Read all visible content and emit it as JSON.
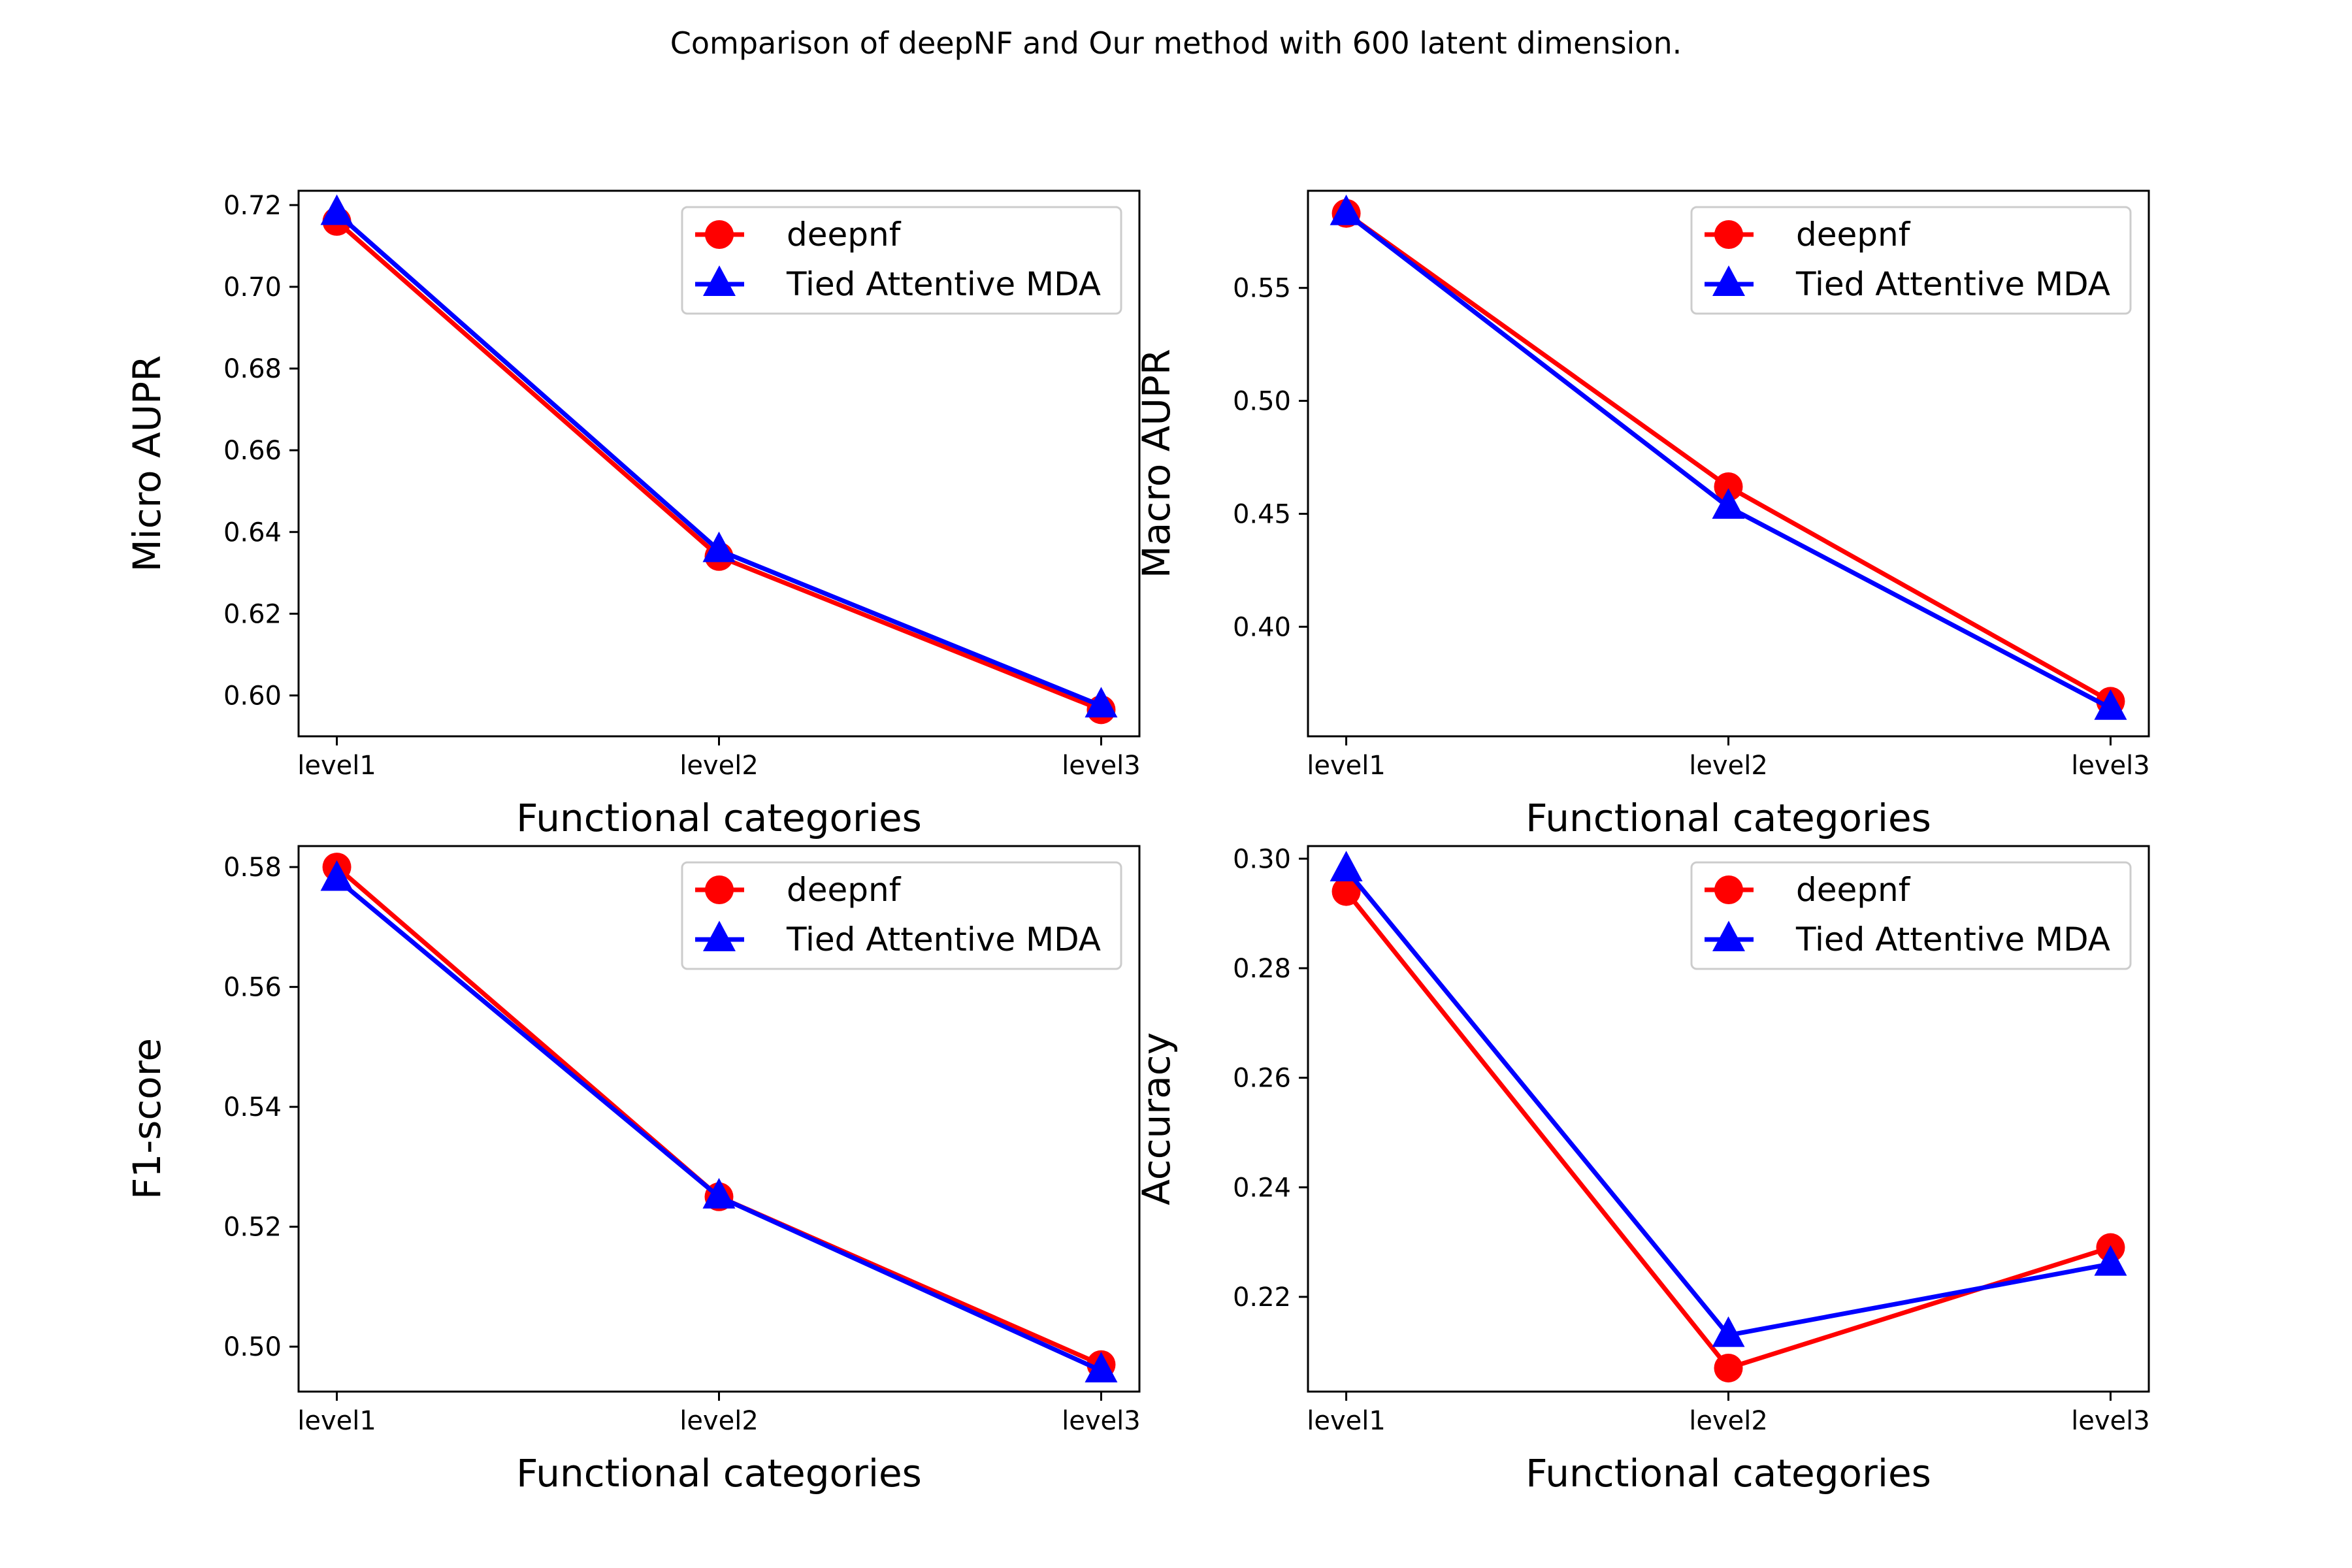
{
  "suptitle": "Comparison of deepNF and Our method with 600 latent dimension.",
  "colors": {
    "series_1": "#ff0000",
    "series_2": "#0000ff",
    "axes": "#000000",
    "legend_border": "#cccccc"
  },
  "chart_data": [
    {
      "type": "line",
      "categories": [
        "level1",
        "level2",
        "level3"
      ],
      "xlabel": "Functional categories",
      "ylabel": "Micro AUPR",
      "ylim": [
        0.59,
        0.7235
      ],
      "yticks": [
        0.6,
        0.62,
        0.64,
        0.66,
        0.68,
        0.7,
        0.72
      ],
      "ytick_labels": [
        "0.60",
        "0.62",
        "0.64",
        "0.66",
        "0.68",
        "0.70",
        "0.72"
      ],
      "legend_position": "top-right",
      "series": [
        {
          "name": "deepnf",
          "marker": "circle",
          "color": "#ff0000",
          "values": [
            0.716,
            0.634,
            0.5965
          ]
        },
        {
          "name": "Tied Attentive MDA",
          "marker": "triangle",
          "color": "#0000ff",
          "values": [
            0.718,
            0.6355,
            0.5975
          ]
        }
      ]
    },
    {
      "type": "line",
      "categories": [
        "level1",
        "level2",
        "level3"
      ],
      "xlabel": "Functional categories",
      "ylabel": "Macro AUPR",
      "ylim": [
        0.3515,
        0.593
      ],
      "yticks": [
        0.4,
        0.45,
        0.5,
        0.55
      ],
      "ytick_labels": [
        "0.40",
        "0.45",
        "0.50",
        "0.55"
      ],
      "legend_position": "top-right",
      "series": [
        {
          "name": "deepnf",
          "marker": "circle",
          "color": "#ff0000",
          "values": [
            0.583,
            0.462,
            0.367
          ]
        },
        {
          "name": "Tied Attentive MDA",
          "marker": "triangle",
          "color": "#0000ff",
          "values": [
            0.583,
            0.453,
            0.364
          ]
        }
      ]
    },
    {
      "type": "line",
      "categories": [
        "level1",
        "level2",
        "level3"
      ],
      "xlabel": "Functional categories",
      "ylabel": "F1-score",
      "ylim": [
        0.4925,
        0.5835
      ],
      "yticks": [
        0.5,
        0.52,
        0.54,
        0.56,
        0.58
      ],
      "ytick_labels": [
        "0.50",
        "0.52",
        "0.54",
        "0.56",
        "0.58"
      ],
      "legend_position": "top-right",
      "series": [
        {
          "name": "deepnf",
          "marker": "circle",
          "color": "#ff0000",
          "values": [
            0.58,
            0.525,
            0.497
          ]
        },
        {
          "name": "Tied Attentive MDA",
          "marker": "triangle",
          "color": "#0000ff",
          "values": [
            0.578,
            0.525,
            0.496
          ]
        }
      ]
    },
    {
      "type": "line",
      "categories": [
        "level1",
        "level2",
        "level3"
      ],
      "xlabel": "Functional categories",
      "ylabel": "Accuracy",
      "ylim": [
        0.2027,
        0.3023
      ],
      "yticks": [
        0.22,
        0.24,
        0.26,
        0.28,
        0.3
      ],
      "ytick_labels": [
        "0.22",
        "0.24",
        "0.26",
        "0.28",
        "0.30"
      ],
      "legend_position": "top-right",
      "series": [
        {
          "name": "deepnf",
          "marker": "circle",
          "color": "#ff0000",
          "values": [
            0.294,
            0.207,
            0.229
          ]
        },
        {
          "name": "Tied Attentive MDA",
          "marker": "triangle",
          "color": "#0000ff",
          "values": [
            0.298,
            0.213,
            0.226
          ]
        }
      ]
    }
  ]
}
